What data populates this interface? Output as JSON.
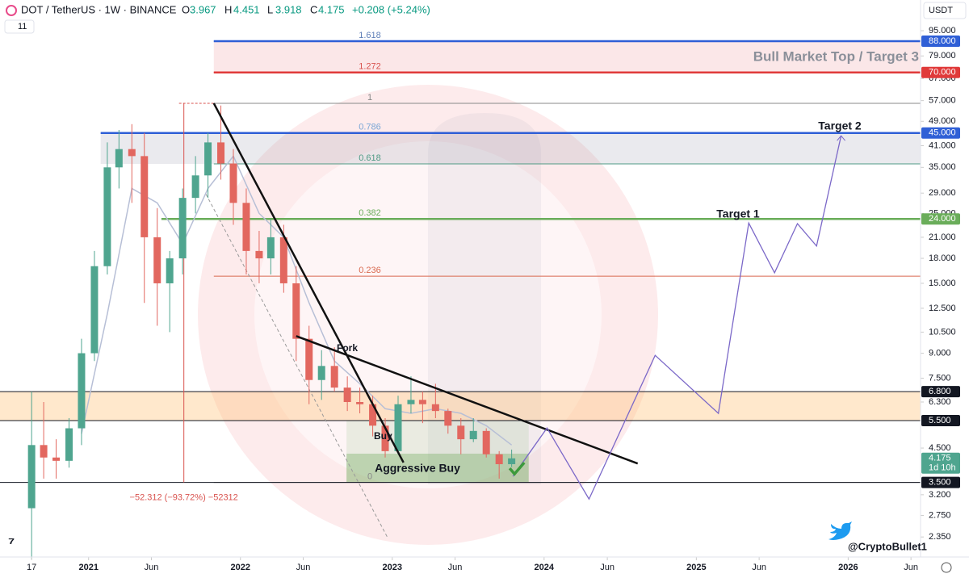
{
  "header": {
    "symbol": "DOT / TetherUS · 1W · BINANCE",
    "open_label": "O",
    "open": 3.967,
    "high_label": "H",
    "high": 4.451,
    "low_label": "L",
    "low": 3.918,
    "close_label": "C",
    "close": 4.175,
    "change": "+0.208 (+5.24%)",
    "indicators": 11,
    "currency": "USDT",
    "watermark": "@CryptoBullet1"
  },
  "chart_data": {
    "type": "candlestick",
    "x": [
      "2020-08-17",
      "2020-09-15",
      "2020-10-15",
      "2020-11-15",
      "2020-12-15",
      "2021-01-15",
      "2021-02-15",
      "2021-03-15",
      "2021-04-15",
      "2021-05-15",
      "2021-06-15",
      "2021-07-15",
      "2021-08-15",
      "2021-09-15",
      "2021-10-15",
      "2021-11-15",
      "2021-12-15",
      "2022-01-15",
      "2022-02-15",
      "2022-03-15",
      "2022-04-15",
      "2022-05-15",
      "2022-06-15",
      "2022-07-15",
      "2022-08-15",
      "2022-09-15",
      "2022-10-15",
      "2022-11-15",
      "2022-12-15",
      "2023-01-15",
      "2023-02-15",
      "2023-03-15",
      "2023-04-15",
      "2023-05-15",
      "2023-06-15",
      "2023-07-15",
      "2023-08-15",
      "2023-09-15",
      "2023-10-15"
    ],
    "open": [
      2.9,
      4.6,
      4.2,
      4.1,
      5.2,
      9.0,
      17,
      35,
      40,
      38,
      21,
      15,
      18,
      28,
      33,
      42,
      36,
      27,
      19,
      18,
      21,
      15,
      10,
      7.4,
      8.2,
      7.0,
      6.3,
      6.2,
      5.3,
      4.4,
      6.2,
      6.4,
      6.2,
      5.9,
      5.3,
      4.8,
      5.1,
      4.3,
      4.0
    ],
    "high": [
      6.8,
      6.3,
      4.8,
      5.6,
      10,
      19,
      42,
      46,
      48,
      45,
      26,
      19,
      30,
      38,
      45,
      55,
      40,
      30,
      22,
      24,
      23,
      17,
      11,
      9.2,
      9.4,
      7.6,
      7.0,
      6.6,
      5.6,
      6.6,
      7.6,
      6.8,
      7.2,
      6.0,
      5.6,
      5.6,
      5.2,
      4.4,
      4.451
    ],
    "low": [
      2.0,
      3.6,
      3.6,
      3.9,
      4.6,
      8.5,
      16,
      30,
      27,
      13,
      11,
      10.5,
      16,
      25,
      28,
      32,
      23,
      16,
      15,
      16,
      14,
      8.5,
      6.2,
      6.4,
      6.8,
      5.9,
      5.8,
      4.9,
      4.2,
      4.3,
      5.8,
      5.4,
      5.6,
      5.0,
      4.3,
      4.7,
      4.2,
      3.6,
      3.918
    ],
    "close": [
      4.6,
      4.2,
      4.1,
      5.2,
      9.0,
      17,
      35,
      40,
      38,
      21,
      15,
      18,
      28,
      33,
      42,
      36,
      27,
      19,
      18,
      21,
      15,
      10,
      7.4,
      8.2,
      7.0,
      6.3,
      6.2,
      5.3,
      4.4,
      6.2,
      6.4,
      6.2,
      5.9,
      5.3,
      4.8,
      5.1,
      4.3,
      4.0,
      4.175
    ],
    "up_color": "#4fa58f",
    "down_color": "#e2675f",
    "ma": {
      "x": [
        "2020-12-15",
        "2021-02-15",
        "2021-04-15",
        "2021-06-15",
        "2021-08-15",
        "2021-10-15",
        "2021-12-15",
        "2022-02-15",
        "2022-04-15",
        "2022-06-15",
        "2022-08-15",
        "2022-10-15",
        "2022-12-15",
        "2023-02-15",
        "2023-04-15",
        "2023-06-15",
        "2023-08-15",
        "2023-10-15"
      ],
      "values": [
        5,
        12,
        30,
        27,
        20,
        30,
        38,
        25,
        21,
        13,
        8.5,
        7.2,
        6,
        5.8,
        6,
        5.8,
        5.3,
        4.6
      ],
      "color": "#b7bfd6"
    },
    "projection": {
      "x": [
        "2023-10-18",
        "2024-01-08",
        "2024-04-18",
        "2024-09-24",
        "2025-02-23",
        "2025-05-07",
        "2025-07-08",
        "2025-09-01",
        "2025-10-17",
        "2025-12-15"
      ],
      "values": [
        3.66,
        5.21,
        3.1,
        8.86,
        5.8,
        23.3,
        16.2,
        23.2,
        19.7,
        44.1
      ],
      "color": "#7b68c8"
    },
    "log_scale": true,
    "xlim": [
      "2020-06-02",
      "2026-06-24"
    ],
    "ylim": [
      2.03,
      118.9
    ],
    "xticks": [
      {
        "value": "2020-08-17",
        "label": "17"
      },
      {
        "value": "2021-01-01",
        "label": "2021"
      },
      {
        "value": "2021-06-01",
        "label": "Jun"
      },
      {
        "value": "2022-01-01",
        "label": "2022"
      },
      {
        "value": "2022-06-01",
        "label": "Jun"
      },
      {
        "value": "2023-01-01",
        "label": "2023"
      },
      {
        "value": "2023-06-01",
        "label": "Jun"
      },
      {
        "value": "2024-01-01",
        "label": "2024"
      },
      {
        "value": "2024-06-01",
        "label": "Jun"
      },
      {
        "value": "2025-01-01",
        "label": "2025"
      },
      {
        "value": "2025-06-01",
        "label": "Jun"
      },
      {
        "value": "2026-01-01",
        "label": "2026"
      },
      {
        "value": "2026-06-01",
        "label": "Jun"
      }
    ],
    "yticks": [
      {
        "value": 95,
        "label": "95.000"
      },
      {
        "value": 79,
        "label": "79.000"
      },
      {
        "value": 67,
        "label": "67.000"
      },
      {
        "value": 57,
        "label": "57.000"
      },
      {
        "value": 49,
        "label": "49.000"
      },
      {
        "value": 41,
        "label": "41.000"
      },
      {
        "value": 35,
        "label": "35.000"
      },
      {
        "value": 29,
        "label": "29.000"
      },
      {
        "value": 25,
        "label": "25.000"
      },
      {
        "value": 21,
        "label": "21.000"
      },
      {
        "value": 18,
        "label": "18.000"
      },
      {
        "value": 15,
        "label": "15.000"
      },
      {
        "value": 12.5,
        "label": "12.500"
      },
      {
        "value": 10.5,
        "label": "10.500"
      },
      {
        "value": 9,
        "label": "9.000"
      },
      {
        "value": 7.5,
        "label": "7.500"
      },
      {
        "value": 6.3,
        "label": "6.300"
      },
      {
        "value": 4.5,
        "label": "4.500"
      },
      {
        "value": 3.2,
        "label": "3.200"
      },
      {
        "value": 2.75,
        "label": "2.750"
      },
      {
        "value": 2.35,
        "label": "2.350"
      }
    ],
    "levels": [
      {
        "value": 88,
        "label": "88.000",
        "color": "#2f5fd6",
        "from": "2021-10-29"
      },
      {
        "value": 70,
        "label": "70.000",
        "color": "#e03a3a",
        "from": "2021-10-29"
      },
      {
        "value": 45,
        "label": "45.000",
        "color": "#2f5fd6",
        "from": "2021-01-30"
      },
      {
        "value": 24,
        "label": "24.000",
        "color": "#6aad5a",
        "from": "2021-06-25"
      },
      {
        "value": 6.8,
        "label": "6.800",
        "color": "#131722",
        "from": "2020-06-02"
      },
      {
        "value": 5.5,
        "label": "5.500",
        "color": "#131722",
        "from": "2020-06-02"
      },
      {
        "value": 3.5,
        "label": "3.500",
        "color": "#131722",
        "from": "2020-06-02"
      }
    ],
    "current": {
      "value": 4.175,
      "label": "4.175",
      "countdown": "1d 10h",
      "color": "#4fa58f"
    },
    "fib": [
      {
        "label": "1.618",
        "value": 88,
        "color": "#5f7fb8"
      },
      {
        "label": "1.272",
        "value": 70,
        "color": "#d9534f"
      },
      {
        "label": "1",
        "value": 55.9,
        "color": "#888888"
      },
      {
        "label": "0.786",
        "value": 45,
        "color": "#7aa6d6"
      },
      {
        "label": "0.618",
        "value": 35.9,
        "color": "#4f9a85"
      },
      {
        "label": "0.382",
        "value": 24,
        "color": "#6aad5a"
      },
      {
        "label": "0.236",
        "value": 15.8,
        "color": "#d9694f"
      },
      {
        "label": "0",
        "value": 3.5,
        "color": "#888888"
      }
    ],
    "fib_from": "2021-10-29",
    "zones": [
      {
        "from": "2021-10-29",
        "low": 70,
        "high": 88,
        "color": "rgba(235,120,130,0.18)"
      },
      {
        "from": "2021-01-30",
        "low": 35.9,
        "high": 45,
        "color": "rgba(150,150,170,0.2)"
      },
      {
        "from": "2020-06-02",
        "low": 5.5,
        "high": 6.8,
        "color": "rgba(255,190,110,0.35)"
      },
      {
        "from": "2022-09-13",
        "to": "2023-11-25",
        "low": 4.32,
        "high": 5.5,
        "color": "rgba(120,180,110,0.15)"
      },
      {
        "from": "2022-09-13",
        "to": "2023-11-25",
        "low": 3.5,
        "high": 4.32,
        "color": "rgba(110,170,90,0.45)"
      }
    ],
    "trendlines": [
      {
        "x": [
          "2021-10-29",
          "2023-01-28"
        ],
        "values": [
          55.9,
          4.05
        ]
      },
      {
        "x": [
          "2022-05-15",
          "2024-08-13"
        ],
        "values": [
          10.2,
          4.02
        ]
      }
    ],
    "dashed": {
      "x": [
        "2021-10-10",
        "2022-12-20"
      ],
      "values": [
        28.8,
        2.35
      ]
    },
    "measure": {
      "x": "2021-08-18",
      "values": [
        55.9,
        3.5
      ],
      "label": "−52.312 (−93.72%) −52312"
    },
    "annotations": [
      "Bull Market Top / Target 3",
      "Target 2",
      "Target 1",
      "Fork",
      "Buy",
      "Aggressive Buy"
    ]
  }
}
